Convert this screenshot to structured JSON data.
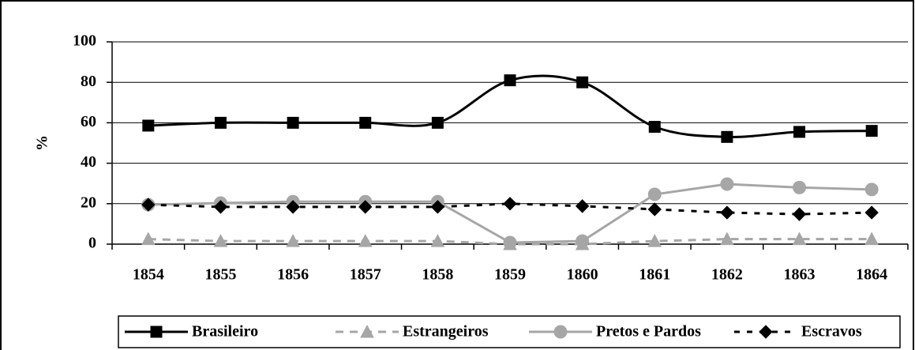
{
  "chart_data": {
    "type": "line",
    "y_label": "%",
    "categories": [
      "1854",
      "1855",
      "1856",
      "1857",
      "1858",
      "1859",
      "1860",
      "1861",
      "1862",
      "1863",
      "1864"
    ],
    "ylim": [
      0,
      100
    ],
    "yticks": [
      0,
      20,
      40,
      60,
      80,
      100
    ],
    "grid": true,
    "legend": "bottom",
    "series": [
      {
        "name": "Brasileiro",
        "color": "#000000",
        "dash": "solid",
        "marker": "square",
        "smooth": true,
        "values": [
          58.6,
          60,
          60,
          60,
          60,
          81,
          80,
          58,
          53,
          55.5,
          56
        ]
      },
      {
        "name": "Estrangeiros",
        "color": "#a6a6a6",
        "dash": "dashed",
        "marker": "triangle",
        "smooth": false,
        "values": [
          2.5,
          1.5,
          1.5,
          1.5,
          1.5,
          0,
          0,
          1.5,
          2.5,
          2.5,
          2.5
        ]
      },
      {
        "name": "Pretos e Pardos",
        "color": "#a6a6a6",
        "dash": "solid",
        "marker": "circle",
        "smooth": false,
        "values": [
          19.5,
          20.3,
          21,
          21,
          21,
          0.8,
          1.5,
          24.6,
          29.7,
          28,
          27
        ]
      },
      {
        "name": "Escravos",
        "color": "#000000",
        "dash": "dotted",
        "marker": "diamond",
        "smooth": false,
        "values": [
          19.5,
          18.4,
          18.4,
          18.4,
          18.4,
          20,
          18.8,
          17.2,
          15.6,
          14.8,
          15.6
        ]
      }
    ]
  }
}
